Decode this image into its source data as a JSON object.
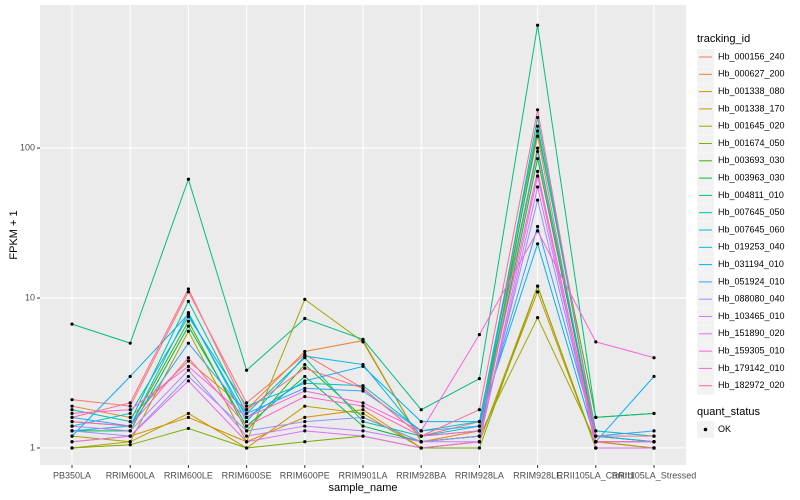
{
  "chart_data": {
    "type": "line",
    "x_label": "sample_name",
    "y_label": "FPKM + 1",
    "log_y": true,
    "grid": true,
    "ylim": [
      0.77,
      900
    ],
    "yticks": [
      1,
      10,
      100
    ],
    "categories": [
      "PB350LA",
      "RRIM600LA",
      "RRIM600LE",
      "RRIM600SE",
      "RRIM600PE",
      "RRIM901LA",
      "RRIM928BA",
      "RRIM928LA",
      "RRIM928LE",
      "RRII105LA_Control",
      "RRII105LA_Stressed"
    ],
    "legend_title": "tracking_id",
    "point_legend": {
      "title": "quant_status",
      "label": "OK",
      "color": "#000000"
    },
    "series": [
      {
        "name": "Hb_000156_240",
        "color": "#F8766D",
        "values": [
          2.1,
          1.9,
          11,
          2.0,
          4.2,
          2.5,
          1.2,
          1.5,
          120,
          1.1,
          1.1
        ]
      },
      {
        "name": "Hb_000627_200",
        "color": "#EA8331",
        "values": [
          1.9,
          1.6,
          3.8,
          1.8,
          4.4,
          5.2,
          1.1,
          1.3,
          95,
          1.1,
          1.0
        ]
      },
      {
        "name": "Hb_001338_080",
        "color": "#D89000",
        "values": [
          1.1,
          1.2,
          1.6,
          1.1,
          1.6,
          1.8,
          1.0,
          1.1,
          11,
          1.0,
          1.0
        ]
      },
      {
        "name": "Hb_001338_170",
        "color": "#C09B00",
        "values": [
          1.0,
          1.1,
          1.7,
          1.0,
          1.9,
          1.7,
          1.0,
          1.1,
          12,
          1.0,
          1.0
        ]
      },
      {
        "name": "Hb_001645_020",
        "color": "#A3A500",
        "values": [
          1.2,
          1.1,
          6,
          1.1,
          9.8,
          5.1,
          1.1,
          1.2,
          7.4,
          1.1,
          1.0
        ]
      },
      {
        "name": "Hb_001674_050",
        "color": "#7CAE00",
        "values": [
          1.0,
          1.05,
          1.35,
          1.0,
          1.1,
          1.2,
          1.0,
          1.0,
          12,
          1.0,
          1.0
        ]
      },
      {
        "name": "Hb_003693_030",
        "color": "#39B600",
        "values": [
          1.5,
          1.4,
          7,
          1.3,
          3.6,
          1.6,
          1.1,
          1.2,
          130,
          1.6,
          1.7
        ]
      },
      {
        "name": "Hb_003963_030",
        "color": "#00BB4E",
        "values": [
          1.3,
          1.3,
          6.5,
          1.4,
          3.0,
          1.4,
          1.1,
          1.2,
          85,
          1.2,
          1.1
        ]
      },
      {
        "name": "Hb_004811_010",
        "color": "#00BF7D",
        "values": [
          6.7,
          5,
          62,
          3.3,
          7.3,
          5.3,
          1.8,
          2.9,
          660,
          1.6,
          1.7
        ]
      },
      {
        "name": "Hb_007645_050",
        "color": "#00C1A3",
        "values": [
          1.8,
          1.5,
          9.5,
          1.7,
          4.0,
          1.5,
          1.2,
          1.3,
          160,
          1.2,
          1.1
        ]
      },
      {
        "name": "Hb_007645_060",
        "color": "#00BFC4",
        "values": [
          1.4,
          1.7,
          7.5,
          1.9,
          2.7,
          2.6,
          1.3,
          1.5,
          140,
          1.3,
          1.2
        ]
      },
      {
        "name": "Hb_019253_040",
        "color": "#00BAE0",
        "values": [
          1.3,
          1.4,
          8,
          1.5,
          4.1,
          3.6,
          1.2,
          1.4,
          100,
          1.2,
          1.1
        ]
      },
      {
        "name": "Hb_031194_010",
        "color": "#00B0F6",
        "values": [
          1.2,
          3.0,
          7.8,
          1.6,
          2.8,
          3.5,
          1.5,
          1.5,
          23,
          1.1,
          3.0
        ]
      },
      {
        "name": "Hb_051924_010",
        "color": "#35A2FF",
        "values": [
          1.6,
          1.4,
          5,
          1.7,
          2.5,
          2.4,
          1.3,
          1.4,
          30,
          1.2,
          1.3
        ]
      },
      {
        "name": "Hb_088080_040",
        "color": "#9590FF",
        "values": [
          1.3,
          1.2,
          3.0,
          1.3,
          1.5,
          1.6,
          1.1,
          1.2,
          45,
          1.1,
          1.1
        ]
      },
      {
        "name": "Hb_103465_010",
        "color": "#C77CFF",
        "values": [
          1.4,
          1.3,
          3.3,
          1.2,
          1.4,
          1.3,
          1.1,
          1.1,
          55,
          1.1,
          1.1
        ]
      },
      {
        "name": "Hb_151890_020",
        "color": "#E76BF3",
        "values": [
          1.1,
          1.2,
          2.8,
          1.1,
          1.3,
          1.2,
          1.0,
          1.1,
          65,
          1.0,
          1.0
        ]
      },
      {
        "name": "Hb_159305_010",
        "color": "#FA62DB",
        "values": [
          1.7,
          1.8,
          3.5,
          1.6,
          2.4,
          2.0,
          1.3,
          5.7,
          28,
          5.1,
          4.0
        ]
      },
      {
        "name": "Hb_179142_010",
        "color": "#FF62BC",
        "values": [
          1.5,
          1.4,
          4,
          1.4,
          2.2,
          1.9,
          1.2,
          1.3,
          70,
          1.1,
          1.1
        ]
      },
      {
        "name": "Hb_182972_020",
        "color": "#FF6C91",
        "values": [
          1.6,
          2.0,
          11.5,
          1.8,
          3.4,
          2.5,
          1.2,
          1.8,
          180,
          1.2,
          1.2
        ]
      }
    ]
  }
}
